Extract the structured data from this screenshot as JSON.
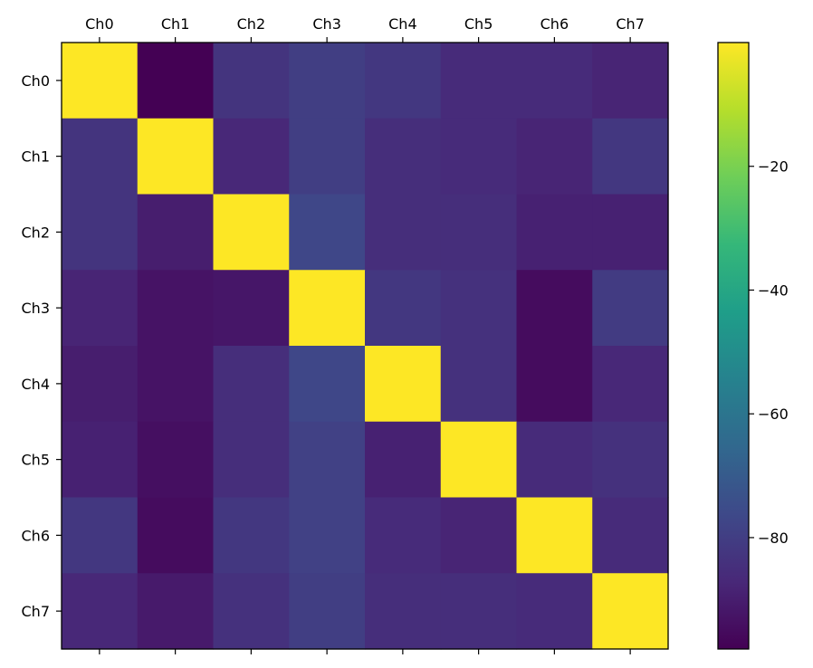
{
  "chart_data": {
    "type": "heatmap",
    "title": "",
    "xlabel": "",
    "ylabel": "",
    "x_categories": [
      "Ch0",
      "Ch1",
      "Ch2",
      "Ch3",
      "Ch4",
      "Ch5",
      "Ch6",
      "Ch7"
    ],
    "y_categories": [
      "Ch0",
      "Ch1",
      "Ch2",
      "Ch3",
      "Ch4",
      "Ch5",
      "Ch6",
      "Ch7"
    ],
    "x_axis_position": "top",
    "values": [
      [
        0,
        -98,
        -83,
        -80,
        -82,
        -86,
        -86,
        -88
      ],
      [
        -83,
        0,
        -87,
        -80,
        -85,
        -86,
        -88,
        -82
      ],
      [
        -83,
        -90,
        0,
        -77,
        -85,
        -85,
        -89,
        -89
      ],
      [
        -88,
        -93,
        -92,
        0,
        -82,
        -84,
        -95,
        -81
      ],
      [
        -90,
        -93,
        -85,
        -77,
        0,
        -84,
        -95,
        -87
      ],
      [
        -89,
        -94,
        -85,
        -79,
        -89,
        0,
        -86,
        -84
      ],
      [
        -82,
        -95,
        -82,
        -79,
        -86,
        -88,
        0,
        -86
      ],
      [
        -87,
        -91,
        -84,
        -80,
        -85,
        -85,
        -86,
        0
      ]
    ],
    "colorbar": {
      "range": [
        -98,
        0
      ],
      "ticks": [
        -80,
        -60,
        -40,
        -20
      ],
      "tick_labels": [
        "−80",
        "−60",
        "−40",
        "−20"
      ],
      "colormap": "viridis",
      "colormap_stops": [
        "#440154",
        "#482878",
        "#3e4989",
        "#31688e",
        "#26828e",
        "#1f9e89",
        "#35b779",
        "#6ece58",
        "#b5de2b",
        "#fde725"
      ]
    }
  }
}
